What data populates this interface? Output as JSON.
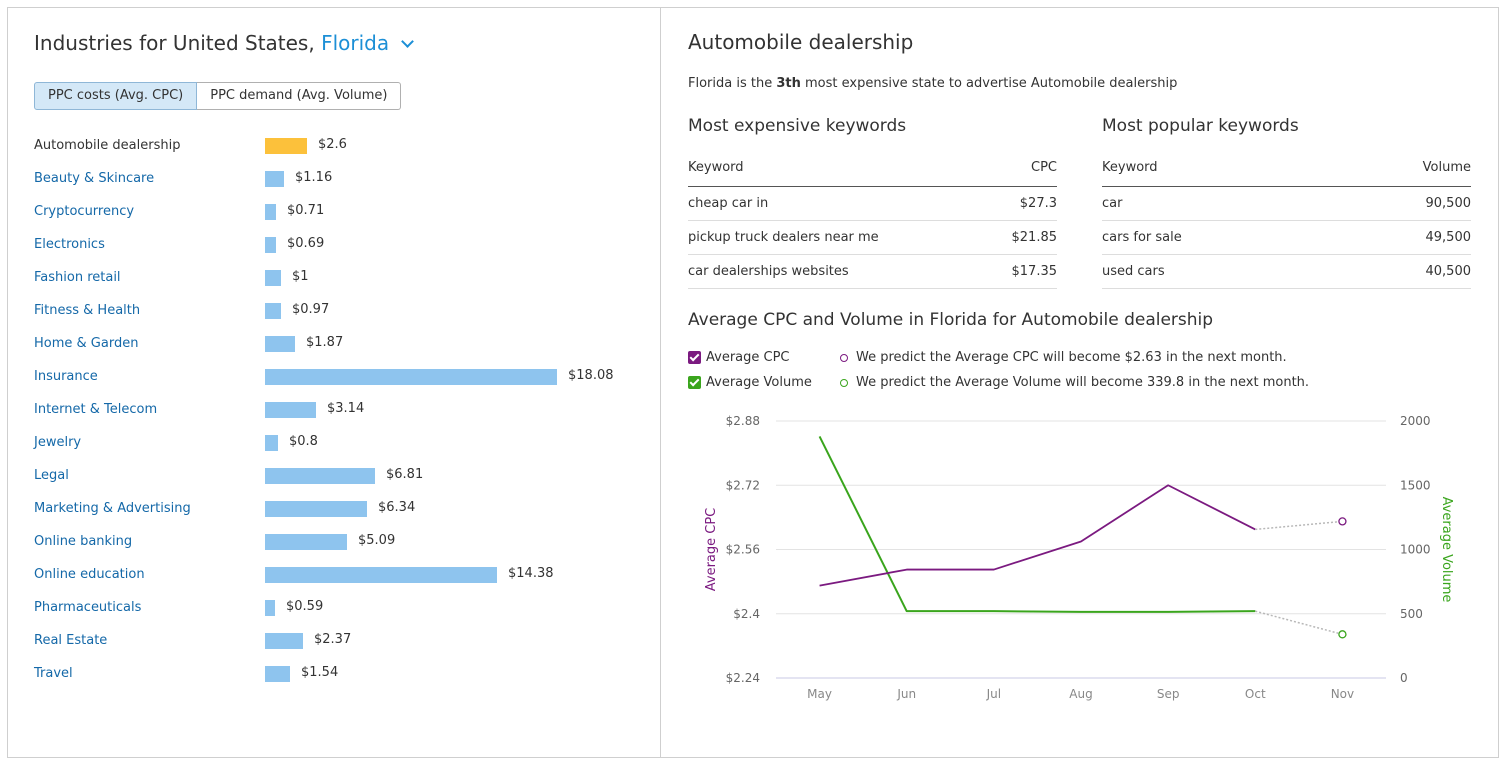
{
  "left": {
    "title_prefix": "Industries for United States,",
    "state": "Florida",
    "toggle": {
      "active": "PPC costs (Avg. CPC)",
      "inactive": "PPC demand (Avg. Volume)"
    }
  },
  "industries": [
    {
      "label": "Automobile dealership",
      "value": 2.6,
      "display": "$2.6",
      "current": true
    },
    {
      "label": "Beauty & Skincare",
      "value": 1.16,
      "display": "$1.16"
    },
    {
      "label": "Cryptocurrency",
      "value": 0.71,
      "display": "$0.71"
    },
    {
      "label": "Electronics",
      "value": 0.69,
      "display": "$0.69"
    },
    {
      "label": "Fashion retail",
      "value": 1,
      "display": "$1"
    },
    {
      "label": "Fitness & Health",
      "value": 0.97,
      "display": "$0.97"
    },
    {
      "label": "Home & Garden",
      "value": 1.87,
      "display": "$1.87"
    },
    {
      "label": "Insurance",
      "value": 18.08,
      "display": "$18.08"
    },
    {
      "label": "Internet & Telecom",
      "value": 3.14,
      "display": "$3.14"
    },
    {
      "label": "Jewelry",
      "value": 0.8,
      "display": "$0.8"
    },
    {
      "label": "Legal",
      "value": 6.81,
      "display": "$6.81"
    },
    {
      "label": "Marketing & Advertising",
      "value": 6.34,
      "display": "$6.34"
    },
    {
      "label": "Online banking",
      "value": 5.09,
      "display": "$5.09"
    },
    {
      "label": "Online education",
      "value": 14.38,
      "display": "$14.38"
    },
    {
      "label": "Pharmaceuticals",
      "value": 0.59,
      "display": "$0.59"
    },
    {
      "label": "Real Estate",
      "value": 2.37,
      "display": "$2.37"
    },
    {
      "label": "Travel",
      "value": 1.54,
      "display": "$1.54"
    }
  ],
  "right": {
    "title": "Automobile dealership",
    "subtitle": {
      "pre": "Florida is the",
      "rank": "3th",
      "post": "most expensive state to advertise Automobile dealership"
    },
    "expensive": {
      "title": "Most expensive keywords",
      "col_keyword": "Keyword",
      "col_value": "CPC",
      "rows": [
        {
          "keyword": "cheap car in",
          "value": "$27.3"
        },
        {
          "keyword": "pickup truck dealers near me",
          "value": "$21.85"
        },
        {
          "keyword": "car dealerships websites",
          "value": "$17.35"
        }
      ]
    },
    "popular": {
      "title": "Most popular keywords",
      "col_keyword": "Keyword",
      "col_value": "Volume",
      "rows": [
        {
          "keyword": "car",
          "value": "90,500"
        },
        {
          "keyword": "cars for sale",
          "value": "49,500"
        },
        {
          "keyword": "used cars",
          "value": "40,500"
        }
      ]
    },
    "chart_title": "Average CPC and Volume in Florida for Automobile dealership",
    "legend": {
      "cpc_label": "Average CPC",
      "volume_label": "Average Volume",
      "cpc_prediction": "We predict the Average CPC will become $2.63 in the next month.",
      "volume_prediction": "We predict the Average Volume will become 339.8 in the next month."
    }
  },
  "colors": {
    "cpc": "#7b1a80",
    "volume": "#3aa51d",
    "bar": "#8ec4ee",
    "bar_current": "#fcc13b",
    "link": "#1468a8"
  },
  "chart_data": [
    {
      "type": "bar",
      "orientation": "horizontal",
      "categories": [
        "Automobile dealership",
        "Beauty & Skincare",
        "Cryptocurrency",
        "Electronics",
        "Fashion retail",
        "Fitness & Health",
        "Home & Garden",
        "Insurance",
        "Internet & Telecom",
        "Jewelry",
        "Legal",
        "Marketing & Advertising",
        "Online banking",
        "Online education",
        "Pharmaceuticals",
        "Real Estate",
        "Travel"
      ],
      "values": [
        2.6,
        1.16,
        0.71,
        0.69,
        1,
        0.97,
        1.87,
        18.08,
        3.14,
        0.8,
        6.81,
        6.34,
        5.09,
        14.38,
        0.59,
        2.37,
        1.54
      ],
      "highlight": "Automobile dealership"
    },
    {
      "type": "line",
      "x": [
        "May",
        "Jun",
        "Jul",
        "Aug",
        "Sep",
        "Oct",
        "Nov"
      ],
      "y_left": {
        "label": "Average CPC",
        "ticks": [
          "$2.88",
          "$2.72",
          "$2.56",
          "$2.4",
          "$2.24"
        ],
        "range": [
          2.24,
          2.88
        ]
      },
      "y_right": {
        "label": "Average Volume",
        "ticks": [
          "2000",
          "1500",
          "1000",
          "500",
          "0"
        ],
        "range": [
          0,
          2000
        ]
      },
      "series": [
        {
          "name": "Average CPC",
          "axis": "left",
          "values": [
            2.47,
            2.51,
            2.51,
            2.58,
            2.72,
            2.61,
            null
          ],
          "predicted": {
            "x": "Nov",
            "value": 2.63
          }
        },
        {
          "name": "Average Volume",
          "axis": "right",
          "values": [
            1880,
            520,
            520,
            515,
            515,
            520,
            null
          ],
          "predicted": {
            "x": "Nov",
            "value": 339.8
          }
        }
      ],
      "grid": true
    }
  ]
}
